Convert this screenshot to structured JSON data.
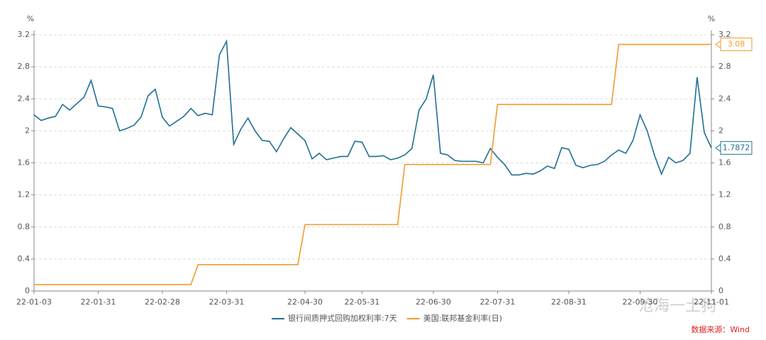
{
  "chart_data": {
    "type": "line",
    "y_label": "%",
    "y2_label": "%",
    "categories": [
      "22-01-03",
      null,
      null,
      null,
      null,
      null,
      null,
      null,
      null,
      "22-01-31",
      null,
      null,
      null,
      null,
      null,
      null,
      null,
      null,
      "22-02-28",
      null,
      null,
      null,
      null,
      null,
      null,
      null,
      null,
      "22-03-31",
      null,
      null,
      null,
      null,
      null,
      null,
      null,
      null,
      null,
      null,
      "22-04-30",
      null,
      null,
      null,
      null,
      null,
      null,
      null,
      "22-05-31",
      null,
      null,
      null,
      null,
      null,
      null,
      null,
      null,
      null,
      "22-06-30",
      null,
      null,
      null,
      null,
      null,
      null,
      null,
      null,
      "22-07-31",
      null,
      null,
      null,
      null,
      null,
      null,
      null,
      null,
      null,
      "22-08-31",
      null,
      null,
      null,
      null,
      null,
      null,
      null,
      null,
      null,
      "22-09-30",
      null,
      null,
      null,
      null,
      null,
      null,
      null,
      null,
      null,
      "22-11-01"
    ],
    "series": [
      {
        "name": "银行间质押式回购加权利率:7天",
        "color": "#1f6f94",
        "values": [
          2.2,
          2.13,
          2.16,
          2.18,
          2.33,
          2.26,
          2.34,
          2.42,
          2.63,
          2.31,
          2.3,
          2.28,
          2.0,
          2.03,
          2.07,
          2.17,
          2.44,
          2.52,
          2.17,
          2.06,
          2.12,
          2.18,
          2.28,
          2.19,
          2.22,
          2.2,
          2.95,
          3.12,
          1.83,
          2.02,
          2.16,
          2.0,
          1.88,
          1.87,
          1.74,
          1.9,
          2.04,
          1.96,
          1.88,
          1.65,
          1.72,
          1.64,
          1.66,
          1.68,
          1.68,
          1.87,
          1.86,
          1.68,
          1.68,
          1.69,
          1.64,
          1.66,
          1.7,
          1.78,
          2.26,
          2.4,
          2.7,
          1.72,
          1.7,
          1.63,
          1.62,
          1.62,
          1.62,
          1.6,
          1.78,
          1.67,
          1.58,
          1.45,
          1.45,
          1.47,
          1.46,
          1.5,
          1.56,
          1.53,
          1.79,
          1.77,
          1.57,
          1.54,
          1.57,
          1.58,
          1.62,
          1.7,
          1.76,
          1.72,
          1.88,
          2.2,
          2.0,
          1.7,
          1.46,
          1.67,
          1.6,
          1.63,
          1.72,
          2.67,
          1.98,
          1.7872
        ]
      },
      {
        "name": "美国:联邦基金利率(日)",
        "color": "#f39a2b",
        "axis": "y2",
        "values": [
          0.08,
          0.08,
          0.08,
          0.08,
          0.08,
          0.08,
          0.08,
          0.08,
          0.08,
          0.08,
          0.08,
          0.08,
          0.08,
          0.08,
          0.08,
          0.08,
          0.08,
          0.08,
          0.08,
          0.08,
          0.08,
          0.08,
          0.08,
          0.33,
          0.33,
          0.33,
          0.33,
          0.33,
          0.33,
          0.33,
          0.33,
          0.33,
          0.33,
          0.33,
          0.33,
          0.33,
          0.33,
          0.33,
          0.83,
          0.83,
          0.83,
          0.83,
          0.83,
          0.83,
          0.83,
          0.83,
          0.83,
          0.83,
          0.83,
          0.83,
          0.83,
          0.83,
          1.58,
          1.58,
          1.58,
          1.58,
          1.58,
          1.58,
          1.58,
          1.58,
          1.58,
          1.58,
          1.58,
          1.58,
          1.58,
          2.33,
          2.33,
          2.33,
          2.33,
          2.33,
          2.33,
          2.33,
          2.33,
          2.33,
          2.33,
          2.33,
          2.33,
          2.33,
          2.33,
          2.33,
          2.33,
          2.33,
          3.08,
          3.08,
          3.08,
          3.08,
          3.08,
          3.08,
          3.08,
          3.08,
          3.08,
          3.08,
          3.08,
          3.08,
          3.08,
          3.08
        ]
      }
    ],
    "ylim": [
      0,
      3.2
    ],
    "yticks": [
      0,
      0.4,
      0.8,
      1.2,
      1.6,
      2,
      2.4,
      2.8,
      3.2
    ],
    "y2lim": [
      0,
      3.2
    ],
    "y2ticks": [
      0,
      0.4,
      0.8,
      1.2,
      1.6,
      2,
      2.4,
      2.8,
      3.2
    ],
    "grid": true,
    "legend": "bottom",
    "source": "数据来源：Wind",
    "watermark": "沧海一土狗"
  }
}
